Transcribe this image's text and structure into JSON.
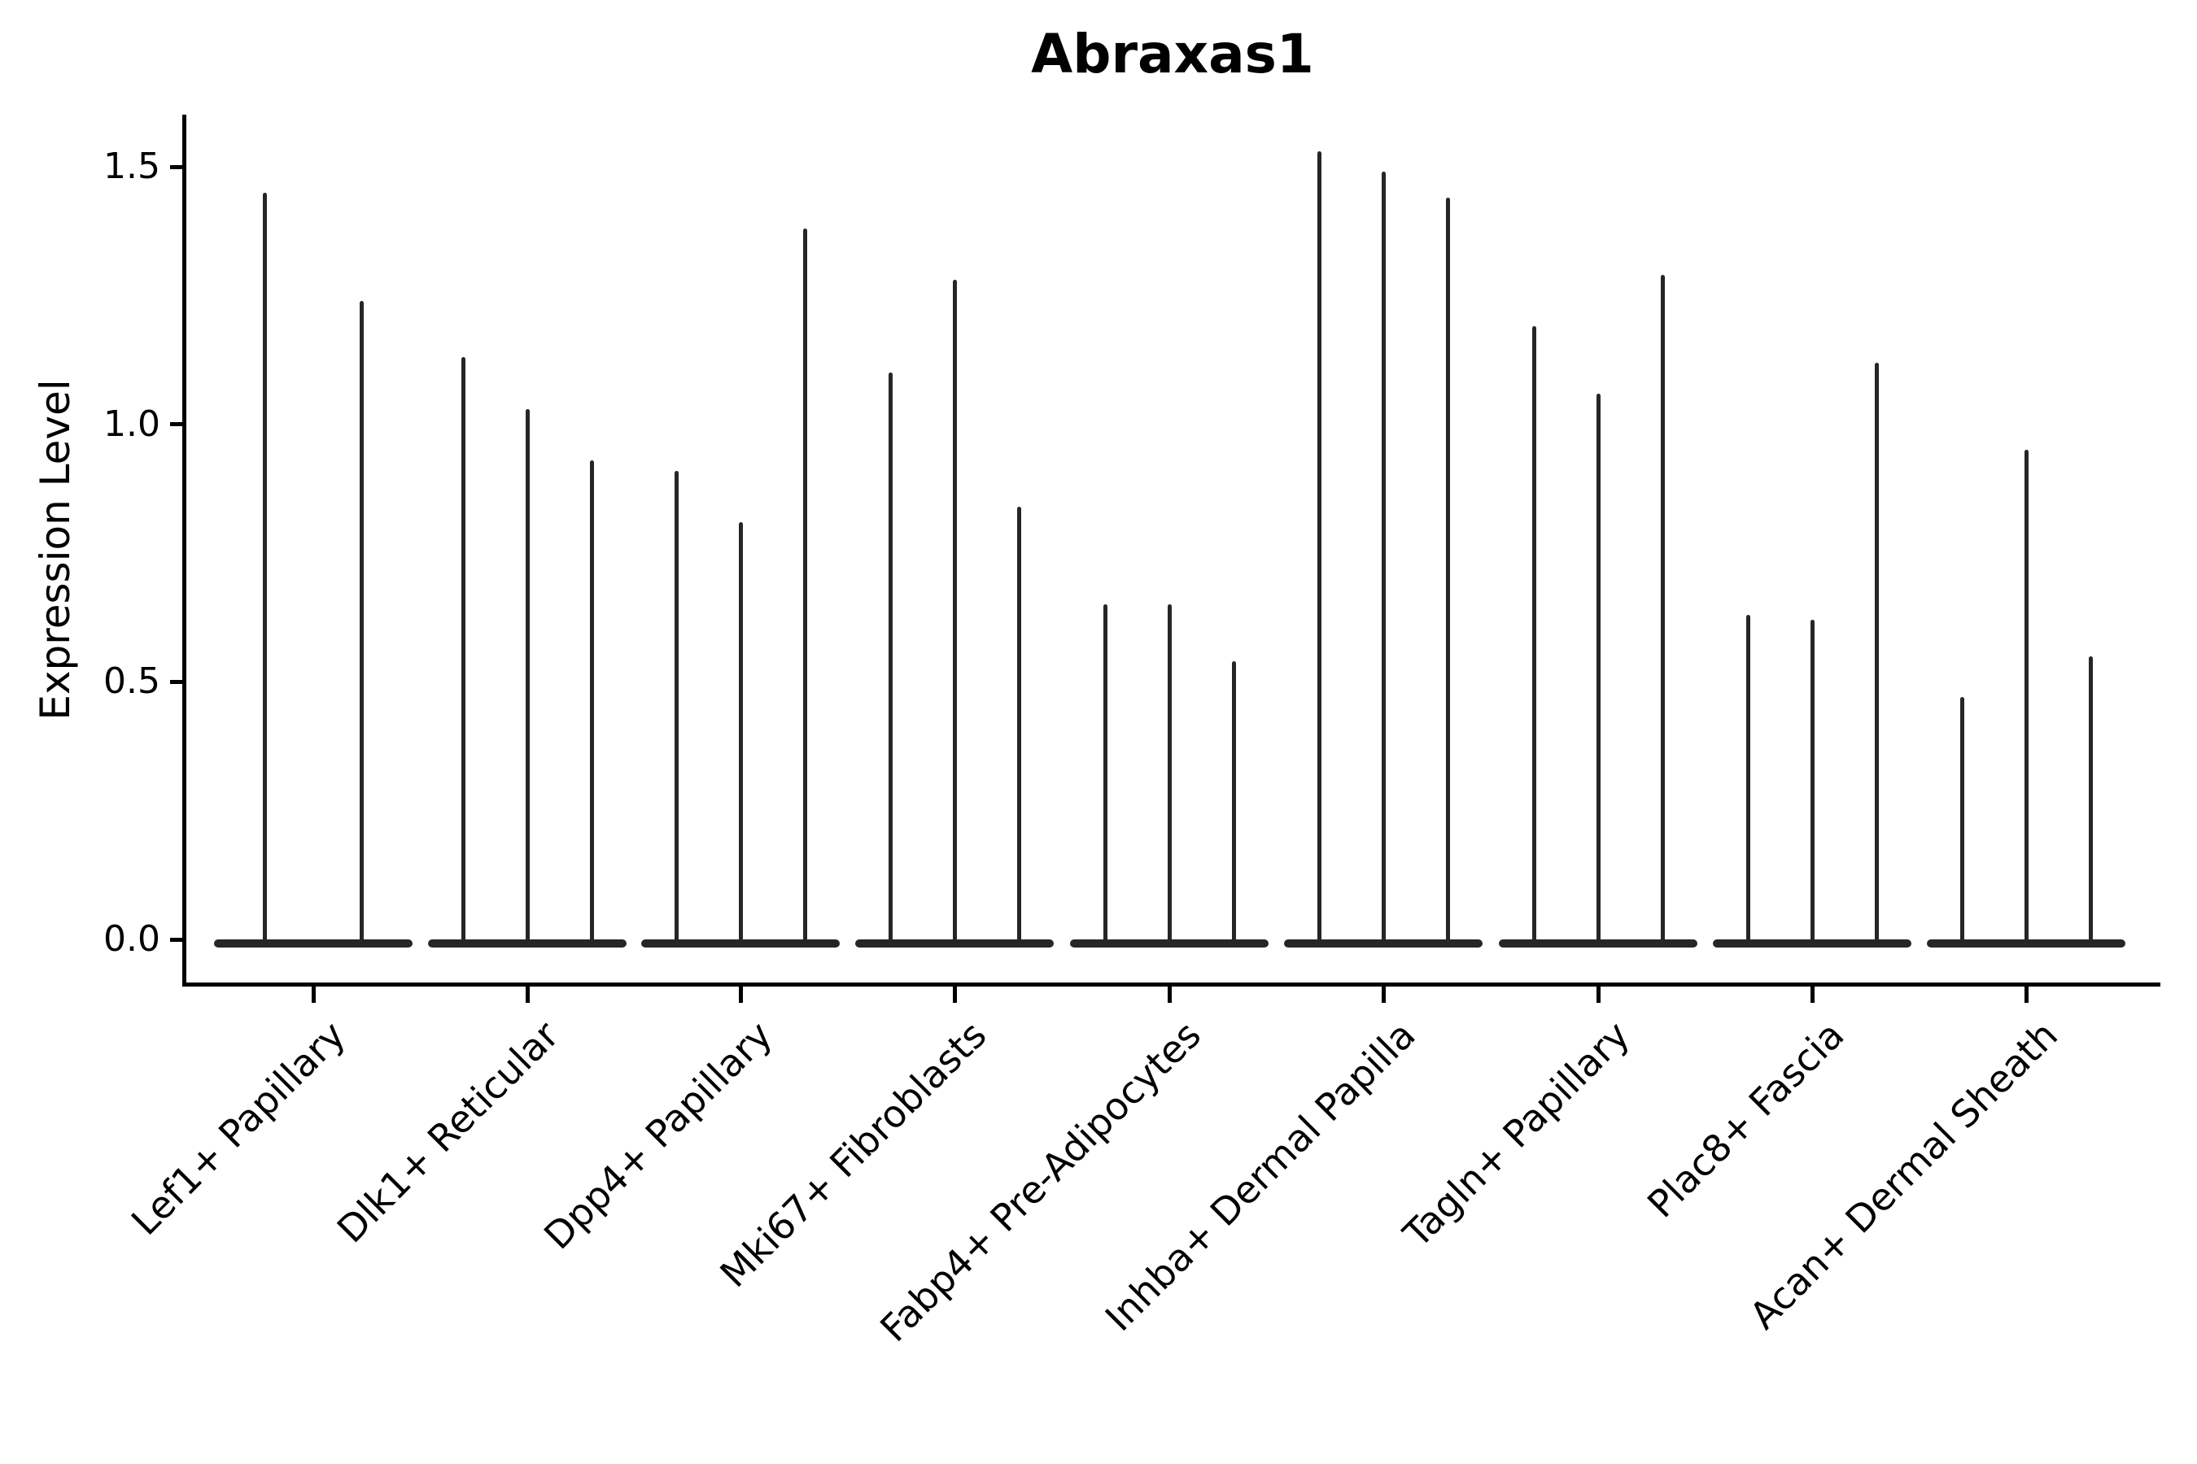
{
  "figure": {
    "title": "Abraxas1",
    "ylabel": "Expression Level"
  },
  "chart_data": {
    "type": "violin",
    "title": "Abraxas1",
    "xlabel": "",
    "ylabel": "Expression Level",
    "ylim": [
      -0.09,
      1.6
    ],
    "yticks": [
      "0.0",
      "0.5",
      "1.0",
      "1.5"
    ],
    "grid": false,
    "legend": false,
    "violin_color": "#262626",
    "axis_color": "#000000",
    "note": "Each violin is an extremely thin spike rising from a flat base at 0 to its maximum expression value",
    "groups": [
      {
        "label": "Lef1+ Papillary",
        "violin_max_values": [
          1.45,
          1.24
        ]
      },
      {
        "label": "Dlk1+ Reticular",
        "violin_max_values": [
          1.13,
          1.03,
          0.93
        ]
      },
      {
        "label": "Dpp4+ Papillary",
        "violin_max_values": [
          0.91,
          0.81,
          1.38
        ]
      },
      {
        "label": "Mki67+ Fibroblasts",
        "violin_max_values": [
          1.1,
          1.28,
          0.84
        ]
      },
      {
        "label": "Fabp4+ Pre-Adipocytes",
        "violin_max_values": [
          0.65,
          0.65,
          0.54
        ]
      },
      {
        "label": "Inhba+ Dermal Papilla",
        "violin_max_values": [
          1.53,
          1.49,
          1.44
        ]
      },
      {
        "label": "Tagln+ Papillary",
        "violin_max_values": [
          1.19,
          1.06,
          1.29
        ]
      },
      {
        "label": "Plac8+ Fascia",
        "violin_max_values": [
          0.63,
          0.62,
          1.12
        ]
      },
      {
        "label": "Acan+ Dermal Sheath",
        "violin_max_values": [
          0.47,
          0.95,
          0.55
        ]
      }
    ]
  }
}
